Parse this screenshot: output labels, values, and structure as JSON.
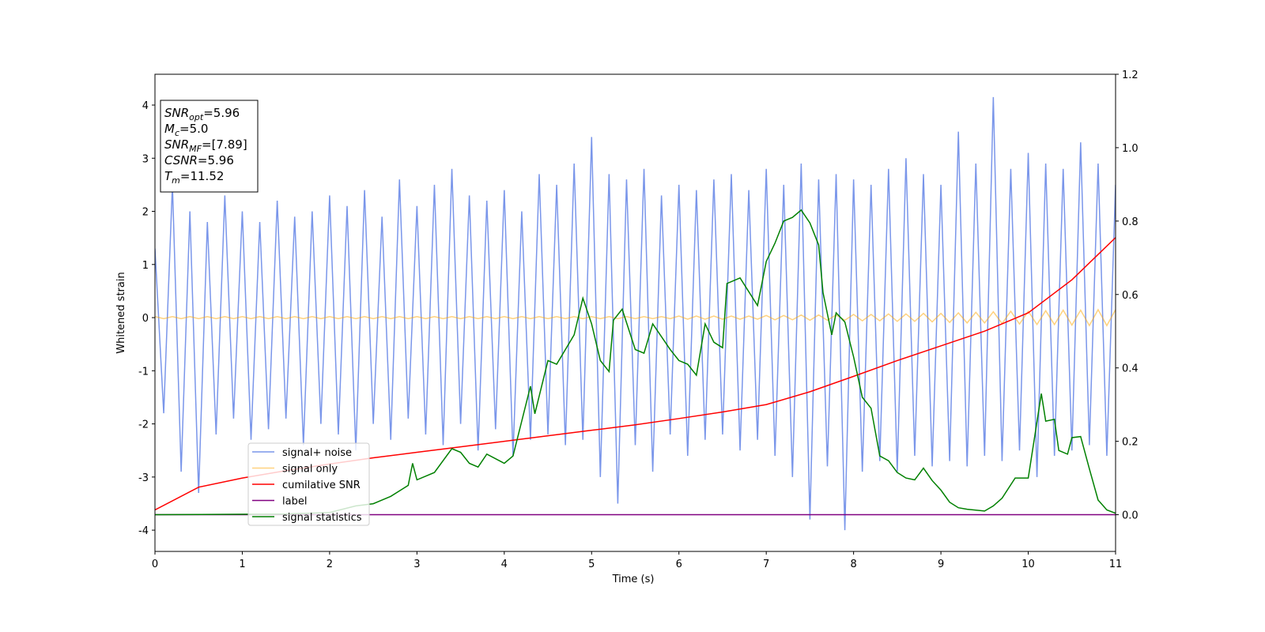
{
  "chart_data": {
    "type": "line",
    "xlabel": "Time (s)",
    "ylabel": "Whitened strain",
    "xlim": [
      0,
      11
    ],
    "ylim": [
      -4.4,
      4.58
    ],
    "y2lim": [
      -0.1,
      1.2
    ],
    "xticks": [
      0,
      1,
      2,
      3,
      4,
      5,
      6,
      7,
      8,
      9,
      10,
      11
    ],
    "yticks": [
      -4,
      -3,
      -2,
      -1,
      0,
      1,
      2,
      3,
      4
    ],
    "y2ticks": [
      {
        "value": 0,
        "label": "0.0"
      },
      {
        "value": 0.2,
        "label": "0.2"
      },
      {
        "value": 0.4,
        "label": "0.4"
      },
      {
        "value": 0.6,
        "label": "0.6"
      },
      {
        "value": 0.8,
        "label": "0.8"
      },
      {
        "value": 1,
        "label": "1.0"
      },
      {
        "value": 1.2,
        "label": "1.2"
      }
    ],
    "legend": "lower left",
    "x": [
      0,
      0.1,
      0.2,
      0.3,
      0.4,
      0.5,
      0.6,
      0.7,
      0.8,
      0.9,
      1,
      1.1,
      1.2,
      1.3,
      1.4,
      1.5,
      1.6,
      1.7,
      1.8,
      1.9,
      2,
      2.1,
      2.2,
      2.3,
      2.4,
      2.5,
      2.6,
      2.7,
      2.8,
      2.9,
      3,
      3.1,
      3.2,
      3.3,
      3.4,
      3.5,
      3.6,
      3.7,
      3.8,
      3.9,
      4,
      4.1,
      4.2,
      4.3,
      4.4,
      4.5,
      4.6,
      4.7,
      4.8,
      4.9,
      5,
      5.1,
      5.2,
      5.3,
      5.4,
      5.5,
      5.6,
      5.7,
      5.8,
      5.9,
      6,
      6.1,
      6.2,
      6.3,
      6.4,
      6.5,
      6.6,
      6.7,
      6.8,
      6.9,
      7,
      7.1,
      7.2,
      7.3,
      7.4,
      7.5,
      7.6,
      7.7,
      7.8,
      7.9,
      8,
      8.1,
      8.2,
      8.3,
      8.4,
      8.5,
      8.6,
      8.7,
      8.8,
      8.9,
      9,
      9.1,
      9.2,
      9.3,
      9.4,
      9.5,
      9.6,
      9.7,
      9.8,
      9.9,
      10,
      10.1,
      10.2,
      10.3,
      10.4,
      10.5,
      10.6,
      10.7,
      10.8,
      10.9,
      11
    ],
    "series": [
      {
        "name": "signal+ noise",
        "color": "#4169e1",
        "opacity": 0.7,
        "values": [
          1.3,
          -1.8,
          2.5,
          -2.9,
          2.0,
          -3.3,
          1.8,
          -2.2,
          2.3,
          -1.9,
          2.0,
          -2.3,
          1.8,
          -2.1,
          2.2,
          -1.9,
          1.9,
          -2.4,
          2.0,
          -2.0,
          2.3,
          -2.2,
          2.1,
          -2.5,
          2.4,
          -2.0,
          1.9,
          -2.3,
          2.6,
          -1.9,
          2.1,
          -2.2,
          2.5,
          -2.4,
          2.8,
          -2.0,
          2.3,
          -2.5,
          2.2,
          -2.1,
          2.4,
          -2.6,
          2.0,
          -2.3,
          2.7,
          -2.2,
          2.5,
          -2.4,
          2.9,
          -2.3,
          3.4,
          -3.0,
          2.7,
          -3.5,
          2.6,
          -2.4,
          2.8,
          -2.9,
          2.3,
          -2.2,
          2.5,
          -2.6,
          2.4,
          -2.3,
          2.6,
          -2.2,
          2.7,
          -2.5,
          2.4,
          -2.3,
          2.8,
          -2.6,
          2.5,
          -3.0,
          2.9,
          -3.8,
          2.6,
          -2.8,
          2.7,
          -4.0,
          2.6,
          -2.9,
          2.5,
          -2.7,
          2.8,
          -2.9,
          3.0,
          -2.6,
          2.7,
          -2.8,
          2.5,
          -2.7,
          3.5,
          -2.8,
          2.9,
          -2.6,
          4.15,
          -2.7,
          2.8,
          -2.5,
          3.1,
          -3.0,
          2.9,
          -2.6,
          2.8,
          -2.5,
          3.3,
          -2.4,
          2.9,
          -2.6,
          2.5
        ]
      },
      {
        "name": "signal only",
        "color": "#ffa500",
        "opacity": 0.5,
        "values": [
          0.02,
          -0.02,
          0.02,
          -0.02,
          0.02,
          -0.02,
          0.02,
          -0.02,
          0.02,
          -0.02,
          0.02,
          -0.02,
          0.02,
          -0.02,
          0.02,
          -0.02,
          0.02,
          -0.02,
          0.02,
          -0.02,
          0.02,
          -0.02,
          0.02,
          -0.02,
          0.02,
          -0.02,
          0.02,
          -0.02,
          0.02,
          -0.02,
          0.02,
          -0.02,
          0.02,
          -0.02,
          0.02,
          -0.02,
          0.02,
          -0.02,
          0.02,
          -0.02,
          0.02,
          -0.02,
          0.02,
          -0.02,
          0.02,
          -0.02,
          0.02,
          -0.02,
          0.02,
          -0.02,
          0.02,
          -0.02,
          0.02,
          -0.02,
          0.02,
          -0.02,
          0.02,
          -0.02,
          0.02,
          -0.02,
          0.03,
          -0.03,
          0.03,
          -0.03,
          0.03,
          -0.03,
          0.03,
          -0.03,
          0.03,
          -0.03,
          0.04,
          -0.04,
          0.04,
          -0.04,
          0.05,
          -0.05,
          0.05,
          -0.05,
          0.05,
          -0.05,
          0.06,
          -0.06,
          0.06,
          -0.06,
          0.07,
          -0.07,
          0.07,
          -0.07,
          0.08,
          -0.08,
          0.08,
          -0.09,
          0.09,
          -0.1,
          0.1,
          -0.1,
          0.11,
          -0.11,
          0.12,
          -0.12,
          0.12,
          -0.13,
          0.13,
          -0.13,
          0.14,
          -0.14,
          0.14,
          -0.15,
          0.15,
          -0.15,
          0.15
        ]
      },
      {
        "name": "cumilative SNR",
        "color": "#ff0000",
        "axis": "y2",
        "x": [
          0,
          0.5,
          1,
          1.5,
          2,
          2.5,
          3,
          3.5,
          4,
          4.5,
          5,
          5.5,
          6,
          6.5,
          7,
          7.5,
          8,
          8.5,
          9,
          9.5,
          10,
          10.5,
          11
        ],
        "values": [
          0.013,
          0.075,
          0.1,
          0.12,
          0.138,
          0.155,
          0.17,
          0.185,
          0.2,
          0.215,
          0.23,
          0.245,
          0.262,
          0.28,
          0.3,
          0.335,
          0.377,
          0.42,
          0.46,
          0.5,
          0.55,
          0.64,
          0.755
        ]
      },
      {
        "name": "label",
        "color": "#800080",
        "axis": "y2",
        "x": [
          0,
          11
        ],
        "values": [
          0,
          0
        ]
      },
      {
        "name": "signal statistics",
        "color": "#008000",
        "axis": "y2",
        "x": [
          0,
          1.5,
          2,
          2.3,
          2.5,
          2.7,
          2.9,
          2.95,
          3.0,
          3.2,
          3.4,
          3.5,
          3.6,
          3.7,
          3.8,
          4.0,
          4.1,
          4.3,
          4.35,
          4.5,
          4.6,
          4.8,
          4.9,
          5.0,
          5.1,
          5.2,
          5.25,
          5.35,
          5.5,
          5.6,
          5.7,
          5.9,
          6.0,
          6.1,
          6.2,
          6.3,
          6.4,
          6.5,
          6.55,
          6.7,
          6.9,
          7.0,
          7.1,
          7.2,
          7.3,
          7.4,
          7.5,
          7.6,
          7.65,
          7.75,
          7.8,
          7.9,
          8.0,
          8.1,
          8.2,
          8.3,
          8.4,
          8.5,
          8.6,
          8.7,
          8.8,
          8.9,
          9.0,
          9.1,
          9.2,
          9.3,
          9.5,
          9.6,
          9.7,
          9.85,
          10.0,
          10.15,
          10.2,
          10.3,
          10.35,
          10.45,
          10.5,
          10.6,
          10.7,
          10.8,
          10.9,
          11.0
        ],
        "values": [
          0,
          0.002,
          0.006,
          0.024,
          0.03,
          0.05,
          0.08,
          0.14,
          0.095,
          0.115,
          0.18,
          0.17,
          0.14,
          0.13,
          0.165,
          0.14,
          0.16,
          0.35,
          0.275,
          0.42,
          0.41,
          0.49,
          0.59,
          0.52,
          0.42,
          0.39,
          0.53,
          0.56,
          0.45,
          0.44,
          0.52,
          0.45,
          0.42,
          0.41,
          0.38,
          0.52,
          0.47,
          0.455,
          0.63,
          0.645,
          0.57,
          0.69,
          0.74,
          0.8,
          0.81,
          0.83,
          0.795,
          0.735,
          0.605,
          0.49,
          0.55,
          0.525,
          0.43,
          0.32,
          0.29,
          0.16,
          0.147,
          0.115,
          0.1,
          0.095,
          0.127,
          0.093,
          0.067,
          0.034,
          0.019,
          0.015,
          0.01,
          0.024,
          0.045,
          0.1,
          0.1,
          0.33,
          0.255,
          0.26,
          0.175,
          0.165,
          0.21,
          0.213,
          0.125,
          0.04,
          0.013,
          0.004
        ]
      }
    ],
    "annotation": [
      {
        "text": "SNR",
        "sub": "opt",
        "rest": "=5.96"
      },
      {
        "text": "M",
        "sub": "c",
        "rest": "=5.0"
      },
      {
        "text": "SNR",
        "sub": "MF",
        "rest": "=[7.89]"
      },
      {
        "text": "CSNR",
        "rest": "=5.96"
      },
      {
        "text": "T",
        "sub": "m",
        "rest": "=11.52"
      }
    ]
  }
}
